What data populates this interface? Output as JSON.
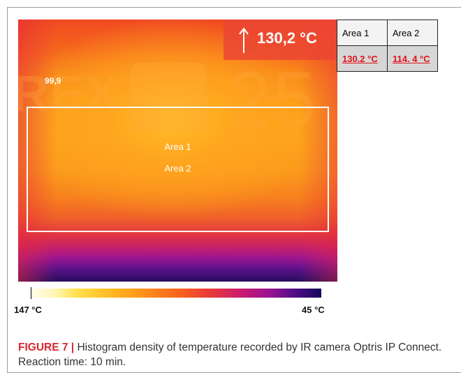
{
  "thermal_image": {
    "max_temperature": "130,2 °C",
    "corner_value": "99,9",
    "watermark_left": "REX",
    "watermark_right": "25",
    "area_labels": [
      "Area 1",
      "Area 2"
    ]
  },
  "results_table": {
    "headers": [
      "Area 1",
      "Area 2"
    ],
    "values": [
      "130.2 °C",
      "114. 4 °C"
    ]
  },
  "color_scale": {
    "min_label": "147 °C",
    "max_label": "45 °C"
  },
  "caption": {
    "figure_number": "FIGURE 7 |",
    "text": " Histogram density of temperature recorded by IR camera Optris IP Connect. Reaction time: 10 min."
  },
  "colors": {
    "caption_accent": "#d8262e",
    "table_value": "#e0121a"
  }
}
